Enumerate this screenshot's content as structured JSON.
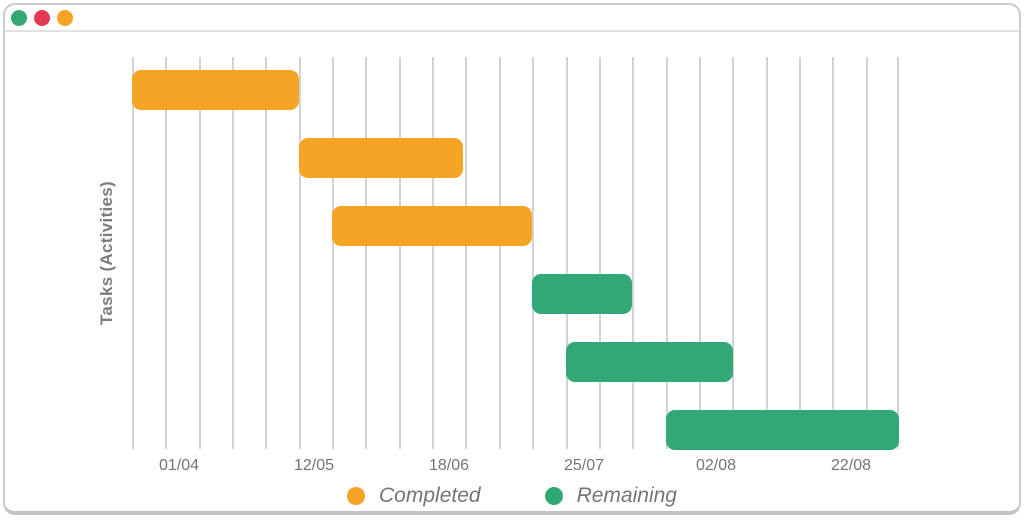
{
  "window": {
    "traffic_lights": [
      {
        "name": "green",
        "color": "#34A873"
      },
      {
        "name": "red",
        "color": "#E13A4F"
      },
      {
        "name": "orange",
        "color": "#F5A424"
      }
    ]
  },
  "chart_data": {
    "type": "bar",
    "subtype": "gantt",
    "title": "",
    "xlabel": "",
    "ylabel": "Tasks (Activities)",
    "grid": "vertical-only",
    "colors": {
      "gridline": "#d2d2d2",
      "completed": "#F5A424",
      "remaining": "#32A877"
    },
    "series": [
      {
        "name": "Completed",
        "color": "#F5A424"
      },
      {
        "name": "Remaining",
        "color": "#32A877"
      }
    ],
    "x_axis": {
      "tick_labels": [
        "01/04",
        "12/05",
        "18/06",
        "25/07",
        "02/08",
        "22/08"
      ],
      "tick_unit_positions": [
        1.42,
        5.45,
        9.5,
        13.55,
        17.5,
        21.55
      ],
      "gridline_count": 24,
      "unit_range": [
        0,
        23
      ]
    },
    "tasks": [
      {
        "row": 0,
        "series": "Completed",
        "start_unit": 0,
        "end_unit": 5
      },
      {
        "row": 1,
        "series": "Completed",
        "start_unit": 5,
        "end_unit": 9.93
      },
      {
        "row": 2,
        "series": "Completed",
        "start_unit": 6,
        "end_unit": 12
      },
      {
        "row": 3,
        "series": "Remaining",
        "start_unit": 12,
        "end_unit": 15
      },
      {
        "row": 4,
        "series": "Remaining",
        "start_unit": 13,
        "end_unit": 18
      },
      {
        "row": 5,
        "series": "Remaining",
        "start_unit": 16,
        "end_unit": 23
      }
    ],
    "legend_position": "bottom-center"
  },
  "legend": {
    "items": [
      {
        "label": "Completed",
        "color": "#F5A424"
      },
      {
        "label": "Remaining",
        "color": "#32A877"
      }
    ]
  }
}
